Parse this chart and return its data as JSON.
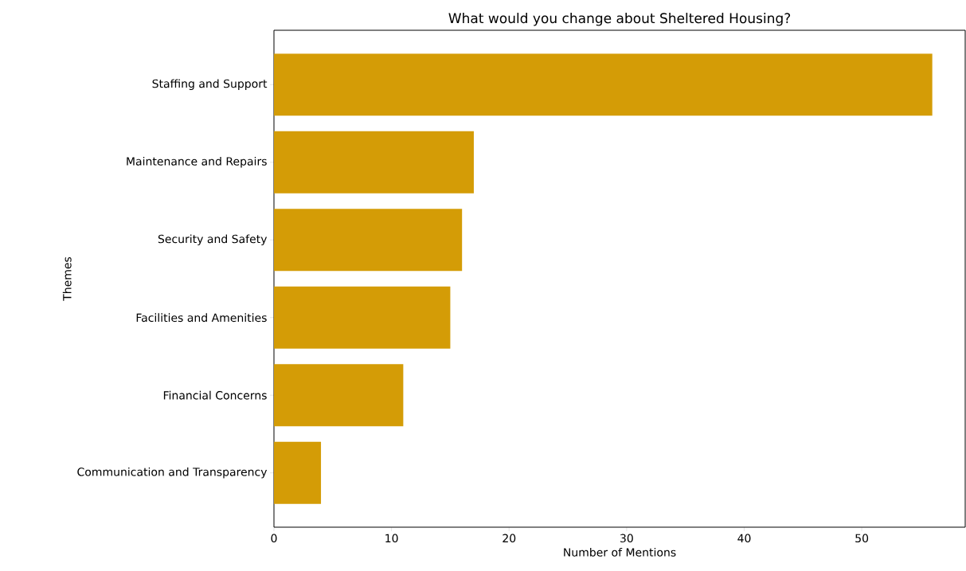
{
  "chart_data": {
    "type": "bar",
    "orientation": "horizontal",
    "title": "What would you change about Sheltered Housing?",
    "xlabel": "Number of Mentions",
    "ylabel": "Themes",
    "categories": [
      "Staffing and Support",
      "Maintenance and Repairs",
      "Security and Safety",
      "Facilities and Amenities",
      "Financial Concerns",
      "Communication and Transparency"
    ],
    "values": [
      56,
      17,
      16,
      15,
      11,
      4
    ],
    "color": "#d49c06",
    "xlim": [
      0,
      58.8
    ],
    "xticks": [
      0,
      10,
      20,
      30,
      40,
      50
    ],
    "grid": false
  }
}
